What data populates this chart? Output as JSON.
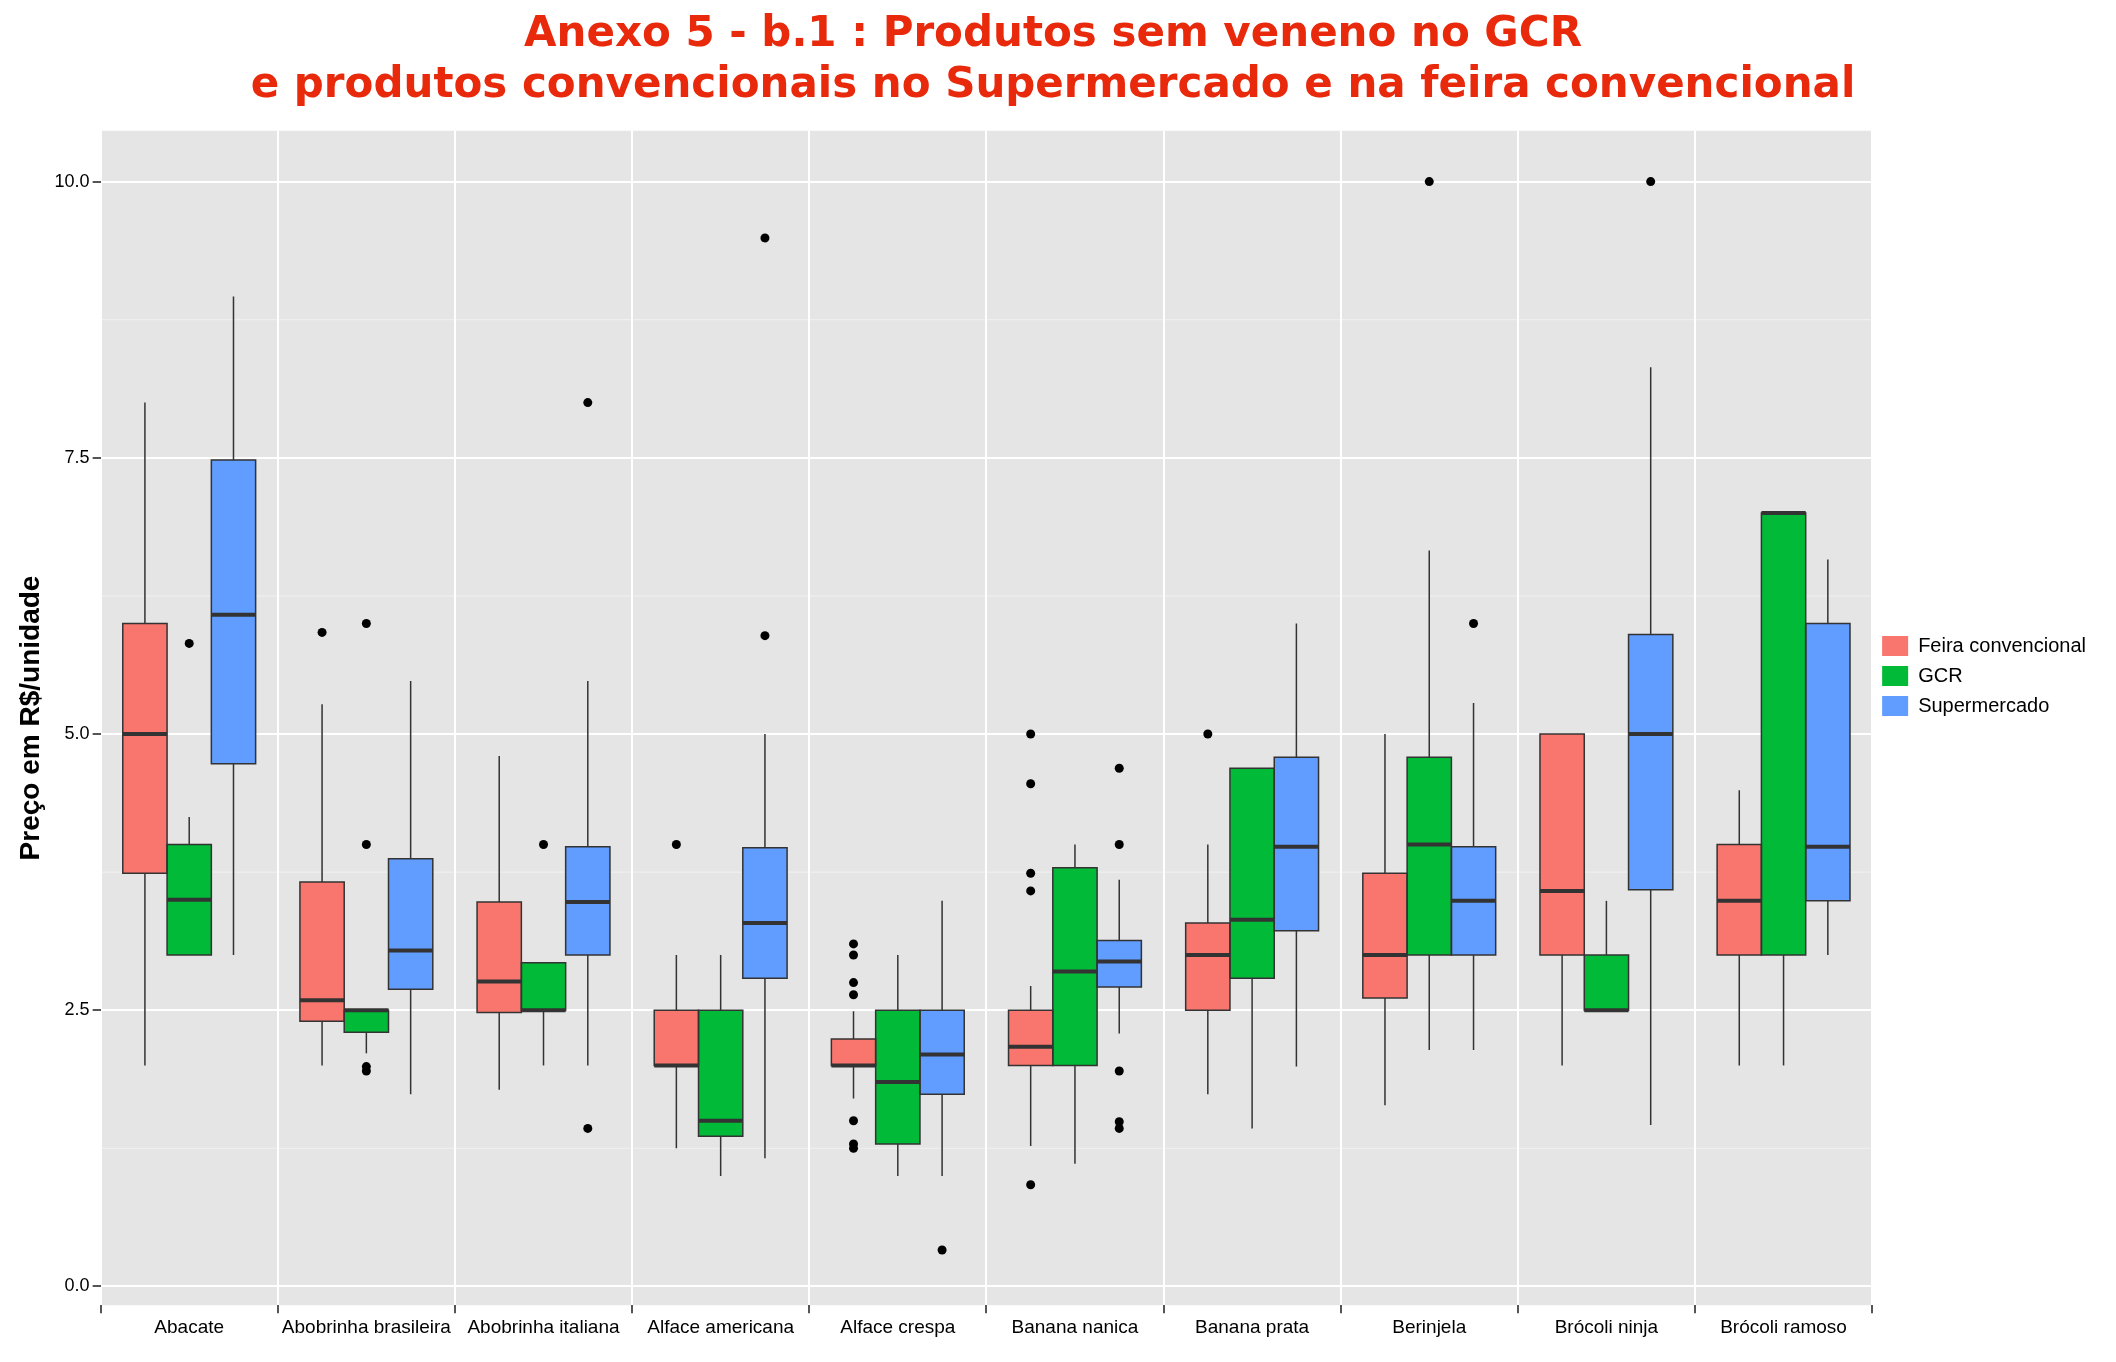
{
  "chart_data": {
    "type": "box",
    "title": "Anexo 5 - b.1 : Produtos sem veneno no GCR\ne produtos convencionais no Supermercado e na feira convencional",
    "ylabel": "Preço em R$/unidade",
    "categories": [
      "Abacate",
      "Abobrinha brasileira",
      "Abobrinha italiana",
      "Alface americana",
      "Alface crespa",
      "Banana nanica",
      "Banana prata",
      "Berinjela",
      "Brócoli ninja",
      "Brócoli ramoso"
    ],
    "series": [
      {
        "name": "Feira convencional",
        "color": "#f8766d",
        "boxes": [
          {
            "low": 2.0,
            "q1": 3.74,
            "median": 5.0,
            "q3": 6.0,
            "high": 8.0
          },
          {
            "low": 2.0,
            "q1": 2.4,
            "median": 2.59,
            "q3": 3.66,
            "high": 5.27,
            "outliers": [
              5.92
            ]
          },
          {
            "low": 1.78,
            "q1": 2.48,
            "median": 2.76,
            "q3": 3.48,
            "high": 4.8
          },
          {
            "low": 1.25,
            "q1": 2.0,
            "median": 2.0,
            "q3": 2.5,
            "high": 3.0,
            "outliers": [
              4.0
            ]
          },
          {
            "low": 1.7,
            "q1": 2.0,
            "median": 2.0,
            "q3": 2.24,
            "high": 2.49,
            "outliers": [
              3.1,
              3.0,
              2.75,
              2.64,
              1.5,
              1.29,
              1.25
            ]
          },
          {
            "low": 1.27,
            "q1": 2.0,
            "median": 2.17,
            "q3": 2.5,
            "high": 2.72,
            "outliers": [
              5.0,
              4.55,
              3.74,
              3.58,
              0.92
            ]
          },
          {
            "low": 1.74,
            "q1": 2.5,
            "median": 3.0,
            "q3": 3.29,
            "high": 4.0,
            "outliers": [
              5.0
            ]
          },
          {
            "low": 1.64,
            "q1": 2.61,
            "median": 3.0,
            "q3": 3.74,
            "high": 5.0
          },
          {
            "low": 2.0,
            "q1": 3.0,
            "median": 3.58,
            "q3": 5.0,
            "high": 5.0
          },
          {
            "low": 2.0,
            "q1": 3.0,
            "median": 3.49,
            "q3": 4.0,
            "high": 4.49
          }
        ]
      },
      {
        "name": "GCR",
        "color": "#00ba38",
        "boxes": [
          {
            "low": 3.0,
            "q1": 3.0,
            "median": 3.5,
            "q3": 4.0,
            "high": 4.25,
            "outliers": [
              5.82
            ]
          },
          {
            "low": 2.11,
            "q1": 2.3,
            "median": 2.5,
            "q3": 2.5,
            "high": 2.5,
            "outliers": [
              6.0,
              4.0,
              1.99,
              1.95
            ]
          },
          {
            "low": 2.0,
            "q1": 2.5,
            "median": 2.5,
            "q3": 2.93,
            "high": 2.93,
            "outliers": [
              4.0
            ]
          },
          {
            "low": 1.0,
            "q1": 1.36,
            "median": 1.5,
            "q3": 2.5,
            "high": 3.0
          },
          {
            "low": 1.0,
            "q1": 1.29,
            "median": 1.85,
            "q3": 2.5,
            "high": 3.0
          },
          {
            "low": 1.11,
            "q1": 2.0,
            "median": 2.85,
            "q3": 3.79,
            "high": 4.0
          },
          {
            "low": 1.43,
            "q1": 2.79,
            "median": 3.32,
            "q3": 4.69,
            "high": 4.69
          },
          {
            "low": 2.14,
            "q1": 3.0,
            "median": 4.0,
            "q3": 4.79,
            "high": 6.66,
            "outliers": [
              10.0
            ]
          },
          {
            "low": 2.5,
            "q1": 2.5,
            "median": 2.5,
            "q3": 3.0,
            "high": 3.49
          },
          {
            "low": 2.0,
            "q1": 3.0,
            "median": 7.0,
            "q3": 7.0,
            "high": 7.0
          }
        ]
      },
      {
        "name": "Supermercado",
        "color": "#619cff",
        "boxes": [
          {
            "low": 3.0,
            "q1": 4.73,
            "median": 6.08,
            "q3": 7.48,
            "high": 8.96
          },
          {
            "low": 1.74,
            "q1": 2.69,
            "median": 3.04,
            "q3": 3.87,
            "high": 5.48
          },
          {
            "low": 2.0,
            "q1": 3.0,
            "median": 3.48,
            "q3": 3.98,
            "high": 5.48,
            "outliers": [
              8.0,
              1.43
            ]
          },
          {
            "low": 1.16,
            "q1": 2.79,
            "median": 3.29,
            "q3": 3.97,
            "high": 5.0,
            "outliers": [
              5.89,
              9.49
            ]
          },
          {
            "low": 1.0,
            "q1": 1.74,
            "median": 2.1,
            "q3": 2.5,
            "high": 3.49,
            "outliers": [
              0.33
            ]
          },
          {
            "low": 2.29,
            "q1": 2.71,
            "median": 2.94,
            "q3": 3.13,
            "high": 3.68,
            "outliers": [
              4.69,
              4.0,
              1.95,
              1.49,
              1.43
            ]
          },
          {
            "low": 1.99,
            "q1": 3.22,
            "median": 3.98,
            "q3": 4.79,
            "high": 6.0
          },
          {
            "low": 2.14,
            "q1": 3.0,
            "median": 3.49,
            "q3": 3.98,
            "high": 5.28,
            "outliers": [
              6.0
            ]
          },
          {
            "low": 1.46,
            "q1": 3.59,
            "median": 5.0,
            "q3": 5.9,
            "high": 8.32,
            "outliers": [
              10.0
            ]
          },
          {
            "low": 3.0,
            "q1": 3.49,
            "median": 3.98,
            "q3": 6.0,
            "high": 6.58
          }
        ]
      }
    ],
    "ylim": [
      -0.17,
      10.46
    ],
    "yticks": [
      {
        "value": 0,
        "label": "0.0"
      },
      2.5,
      {
        "value": 5,
        "label": "5.0"
      },
      7.5,
      {
        "value": 10,
        "label": "10.0"
      }
    ],
    "grid": true,
    "legend": "right"
  }
}
